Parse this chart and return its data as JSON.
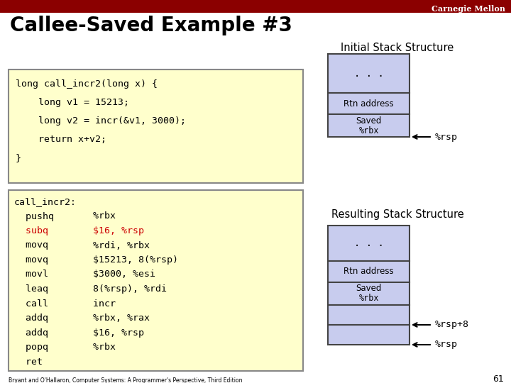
{
  "title": "Callee-Saved Example #3",
  "bg_color": "#ffffff",
  "header_bar_color": "#8B0000",
  "header_text": "Carnegie Mellon",
  "slide_number": "61",
  "code_bg": "#ffffcc",
  "code_border": "#888888",
  "stack_fill": "#c8ccee",
  "stack_border": "#444444",
  "code_block1": [
    "long call_incr2(long x) {",
    "    long v1 = 15213;",
    "    long v2 = incr(&v1, 3000);",
    "    return x+v2;",
    "}"
  ],
  "code_block2_lines": [
    [
      "call_incr2:",
      ""
    ],
    [
      "  pushq",
      "   %rbx"
    ],
    [
      "  subq",
      "   $16, %rsp"
    ],
    [
      "  movq",
      "   %rdi, %rbx"
    ],
    [
      "  movq",
      "   $15213, 8(%rsp)"
    ],
    [
      "  movl",
      "   $3000, %esi"
    ],
    [
      "  leaq",
      "   8(%rsp), %rdi"
    ],
    [
      "  call",
      "   incr"
    ],
    [
      "  addq",
      "   %rbx, %rax"
    ],
    [
      "  addq",
      "   $16, %rsp"
    ],
    [
      "  popq",
      "   %rbx"
    ],
    [
      "  ret",
      ""
    ]
  ],
  "highlight_line": 2,
  "highlight_color": "#cc0000",
  "normal_color": "#000000",
  "initial_stack_label": "Initial Stack Structure",
  "resulting_stack_label": "Resulting Stack Structure",
  "footer_text": "Bryant and O'Hallaron, Computer Systems: A Programmer's Perspective, Third Edition"
}
